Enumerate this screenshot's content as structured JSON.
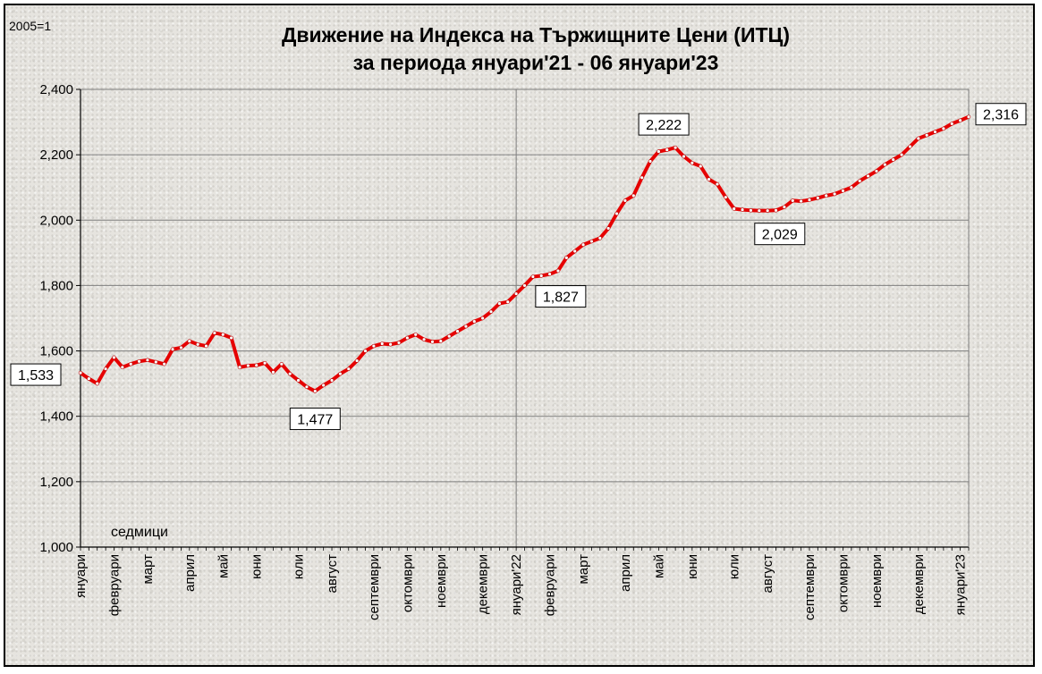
{
  "chart_data": {
    "type": "line",
    "title_line1": "Движение на Индекса на Тържищните Цени (ИТЦ)",
    "title_line2": "за периода януари'21  - 06 януари'23",
    "base_label": "2005=1",
    "xlabel": "седмици",
    "ylim": [
      1.0,
      2.4
    ],
    "yticks": [
      "1,000",
      "1,200",
      "1,400",
      "1,600",
      "1,800",
      "2,000",
      "2,200",
      "2,400"
    ],
    "ytick_values": [
      1.0,
      1.2,
      1.4,
      1.6,
      1.8,
      2.0,
      2.2,
      2.4
    ],
    "month_labels": [
      "януари",
      "февруари",
      "март",
      "април",
      "май",
      "юни",
      "юли",
      "август",
      "септември",
      "октомври",
      "ноември",
      "декември",
      "януари'22",
      "февруари",
      "март",
      "април",
      "май",
      "юни",
      "юли",
      "август",
      "септември",
      "октомври",
      "ноември",
      "декември",
      "януари'23"
    ],
    "month_week_index": [
      0,
      4,
      8,
      13,
      17,
      21,
      26,
      30,
      35,
      39,
      43,
      48,
      52,
      56,
      60,
      65,
      69,
      73,
      78,
      82,
      87,
      91,
      95,
      100,
      105
    ],
    "series": [
      {
        "color": "#e60000",
        "values": [
          1.533,
          1.515,
          1.5,
          1.545,
          1.58,
          1.55,
          1.56,
          1.568,
          1.572,
          1.566,
          1.56,
          1.605,
          1.61,
          1.63,
          1.62,
          1.615,
          1.655,
          1.65,
          1.64,
          1.55,
          1.555,
          1.556,
          1.563,
          1.535,
          1.56,
          1.53,
          1.51,
          1.49,
          1.477,
          1.495,
          1.51,
          1.53,
          1.545,
          1.57,
          1.6,
          1.615,
          1.622,
          1.62,
          1.625,
          1.64,
          1.65,
          1.635,
          1.628,
          1.63,
          1.645,
          1.66,
          1.675,
          1.69,
          1.7,
          1.72,
          1.745,
          1.75,
          1.775,
          1.8,
          1.827,
          1.83,
          1.835,
          1.845,
          1.885,
          1.905,
          1.925,
          1.935,
          1.945,
          1.975,
          2.02,
          2.06,
          2.075,
          2.13,
          2.18,
          2.21,
          2.215,
          2.222,
          2.195,
          2.175,
          2.165,
          2.125,
          2.11,
          2.07,
          2.035,
          2.032,
          2.03,
          2.029,
          2.029,
          2.03,
          2.04,
          2.06,
          2.058,
          2.062,
          2.068,
          2.075,
          2.08,
          2.09,
          2.1,
          2.12,
          2.135,
          2.15,
          2.17,
          2.185,
          2.2,
          2.225,
          2.25,
          2.26,
          2.27,
          2.28,
          2.295,
          2.305,
          2.316
        ]
      }
    ],
    "data_labels": [
      {
        "index": 0,
        "text": "1,533"
      },
      {
        "index": 28,
        "text": "1,477"
      },
      {
        "index": 54,
        "text": "1,827"
      },
      {
        "index": 71,
        "text": "2,222"
      },
      {
        "index": 81,
        "text": "2,029"
      },
      {
        "index": 106,
        "text": "2,316"
      }
    ],
    "grid": true,
    "legend": "none"
  }
}
